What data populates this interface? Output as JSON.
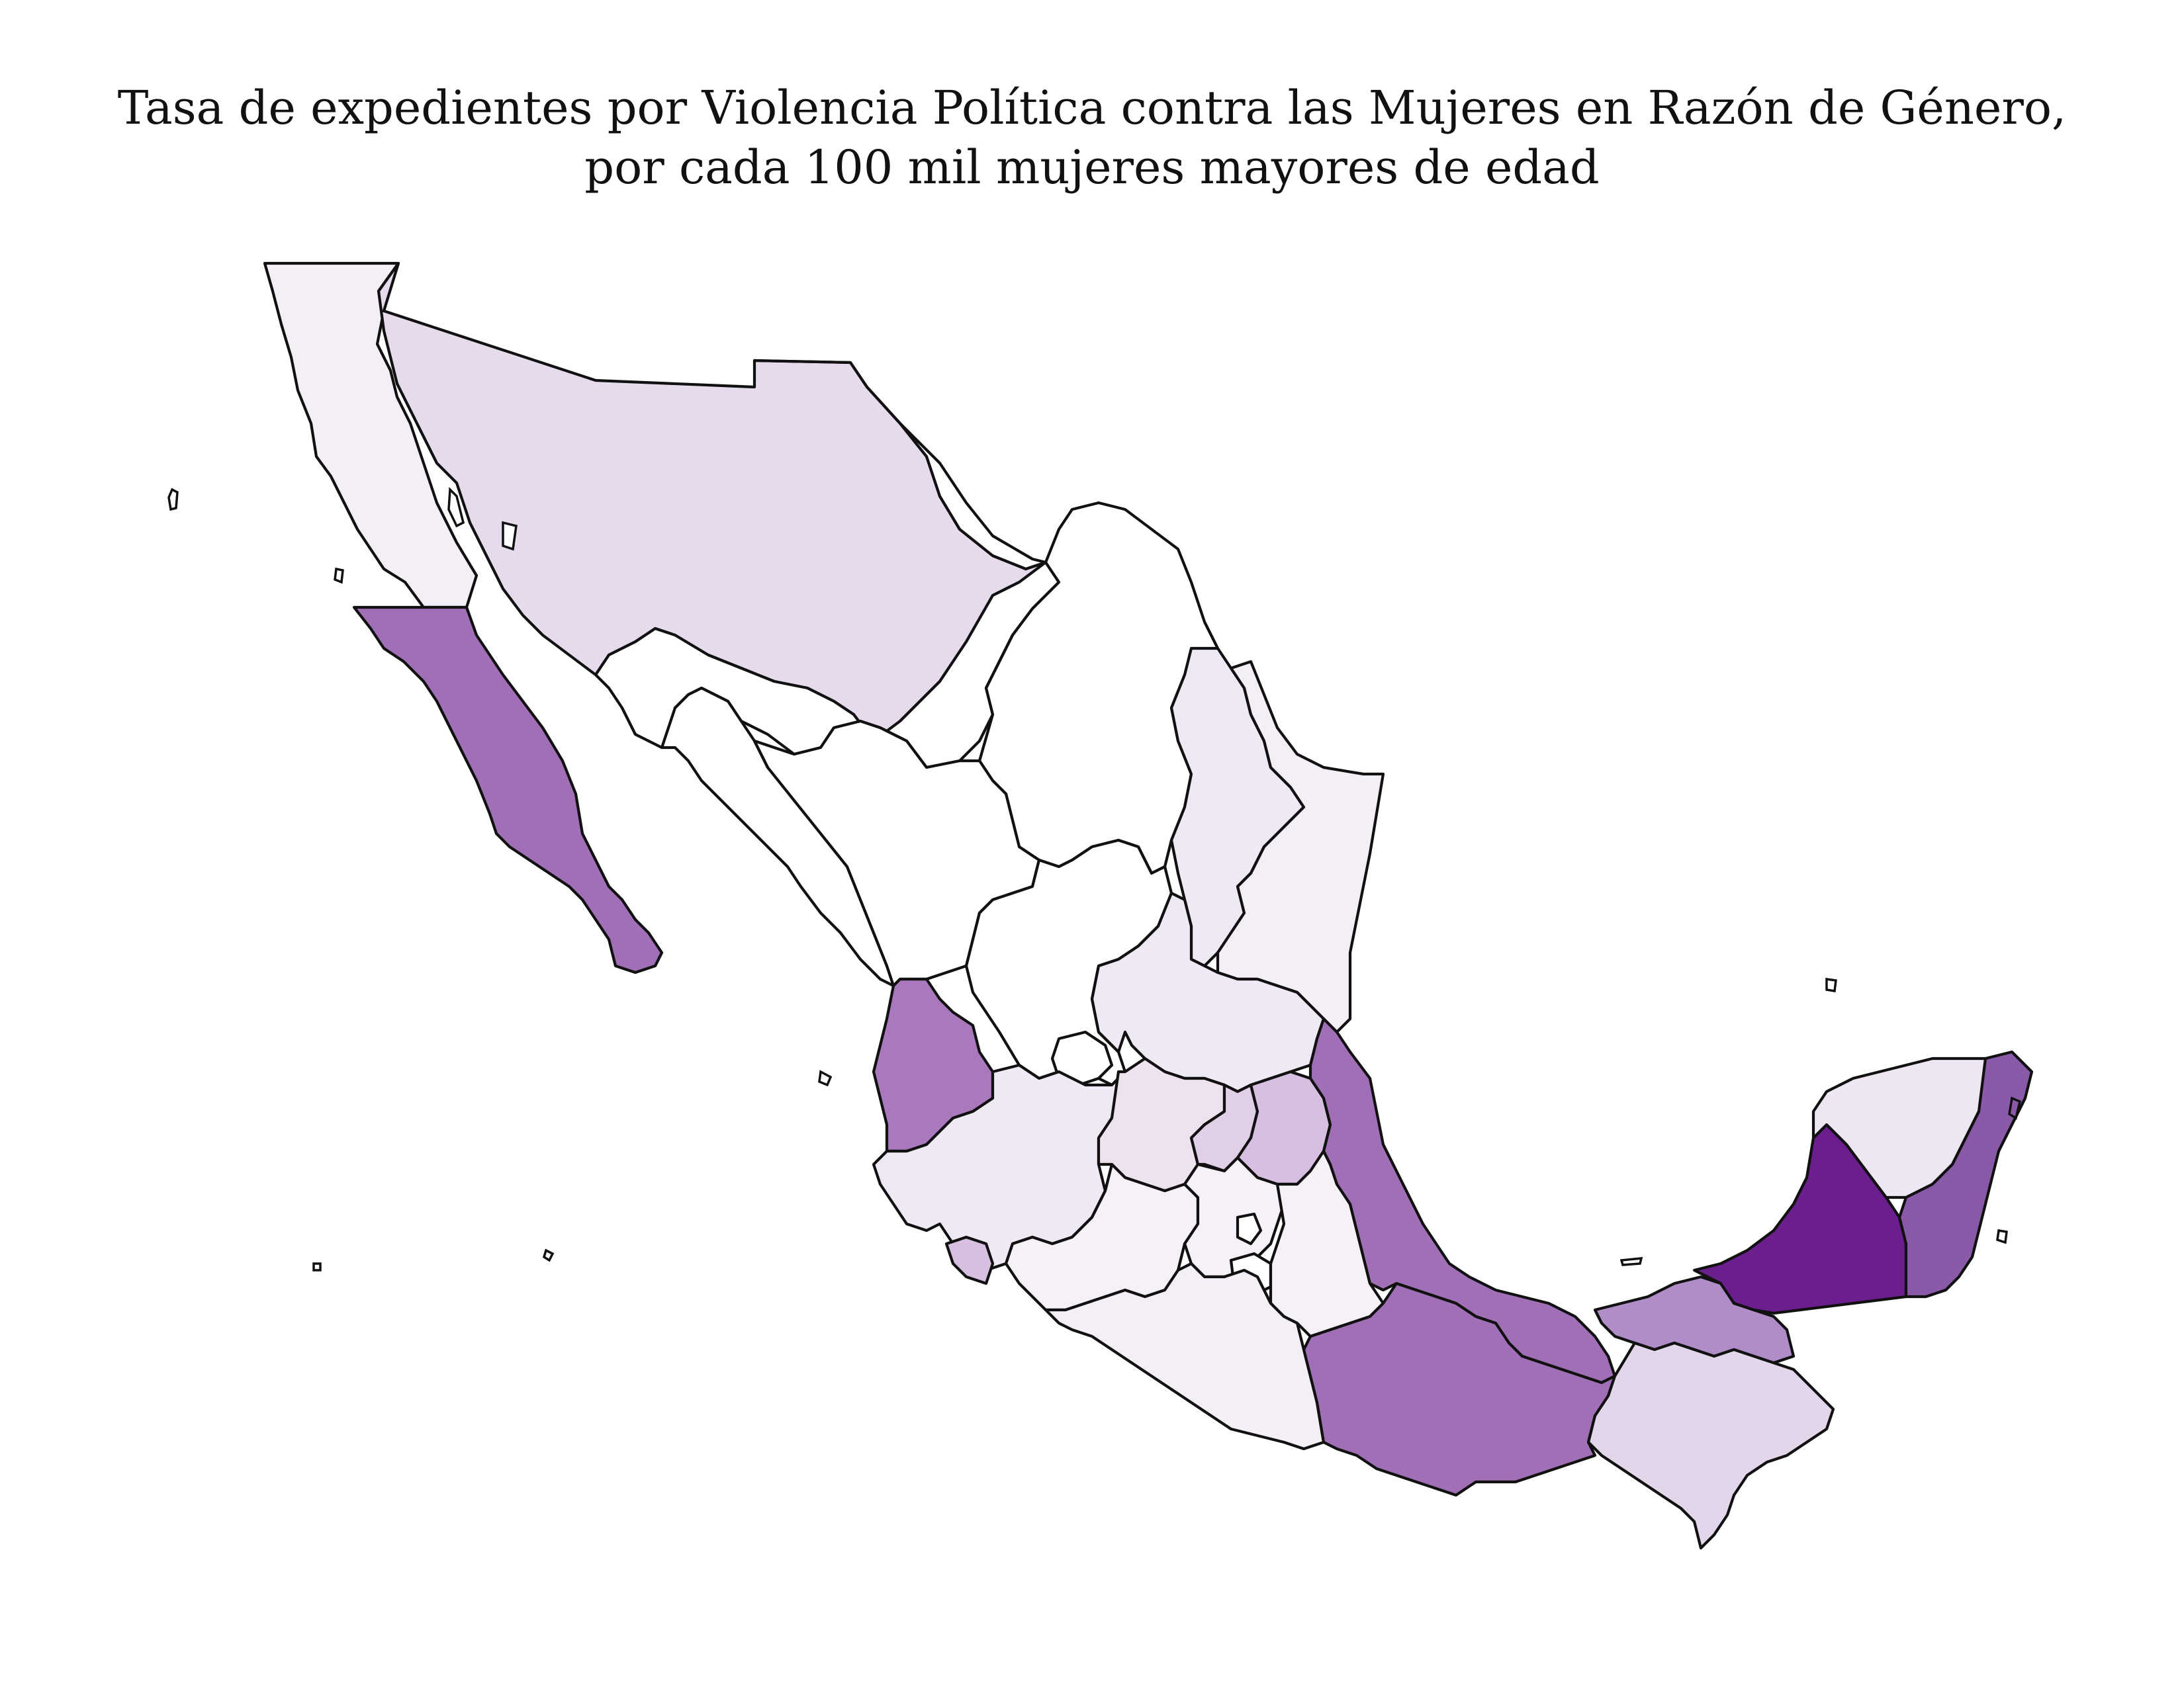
{
  "title": {
    "line1": "Tasa de expedientes por Violencia Política contra las Mujeres en Razón de Género,",
    "line2": "por cada 100 mil mujeres mayores de edad"
  },
  "palette": {
    "outline": "#111111",
    "white": "#ffffff",
    "very_light": "#f4eef6",
    "light": "#efe9f5",
    "light_medium": "#e6dbec",
    "medium_light": "#d6bfe0",
    "medium": "#a98ac6",
    "medium_dark": "#a06fb6",
    "dark": "#8a5aa8",
    "darkest": "#6a1f8c"
  },
  "states": [
    {
      "name": "Baja California",
      "color": "#f4eef6"
    },
    {
      "name": "Sonora",
      "color": "#e6dbec"
    },
    {
      "name": "Chihuahua",
      "color": "#ffffff"
    },
    {
      "name": "Coahuila",
      "color": "#ffffff"
    },
    {
      "name": "Nuevo León",
      "color": "#efe9f5"
    },
    {
      "name": "Tamaulipas",
      "color": "#f4eef6"
    },
    {
      "name": "Baja California Sur",
      "color": "#a06fb6"
    },
    {
      "name": "Sinaloa",
      "color": "#ffffff"
    },
    {
      "name": "Durango",
      "color": "#ffffff"
    },
    {
      "name": "Zacatecas",
      "color": "#ffffff"
    },
    {
      "name": "San Luis Potosí",
      "color": "#efe9f5"
    },
    {
      "name": "Nayarit",
      "color": "#a978bd"
    },
    {
      "name": "Aguascalientes",
      "color": "#ffffff"
    },
    {
      "name": "Jalisco",
      "color": "#efe9f5"
    },
    {
      "name": "Colima",
      "color": "#d6bfe0"
    },
    {
      "name": "Guanajuato",
      "color": "#efe2ef"
    },
    {
      "name": "Querétaro",
      "color": "#e0cfe6"
    },
    {
      "name": "Hidalgo",
      "color": "#d6bfe0"
    },
    {
      "name": "Michoacán",
      "color": "#f6f1f8"
    },
    {
      "name": "Estado de México",
      "color": "#f6f1f8"
    },
    {
      "name": "Ciudad de México",
      "color": "#ffffff"
    },
    {
      "name": "Morelos",
      "color": "#ffffff"
    },
    {
      "name": "Tlaxcala",
      "color": "#ffffff"
    },
    {
      "name": "Puebla",
      "color": "#f6f1f8"
    },
    {
      "name": "Guerrero",
      "color": "#f4eef6"
    },
    {
      "name": "Veracruz",
      "color": "#a06fb6"
    },
    {
      "name": "Oaxaca",
      "color": "#a06fb6"
    },
    {
      "name": "Tabasco",
      "color": "#b08dc6"
    },
    {
      "name": "Chiapas",
      "color": "#e3d5ea"
    },
    {
      "name": "Campeche",
      "color": "#6a1f8c"
    },
    {
      "name": "Yucatán",
      "color": "#eee6f3"
    },
    {
      "name": "Quintana Roo",
      "color": "#8a5aa8"
    }
  ]
}
